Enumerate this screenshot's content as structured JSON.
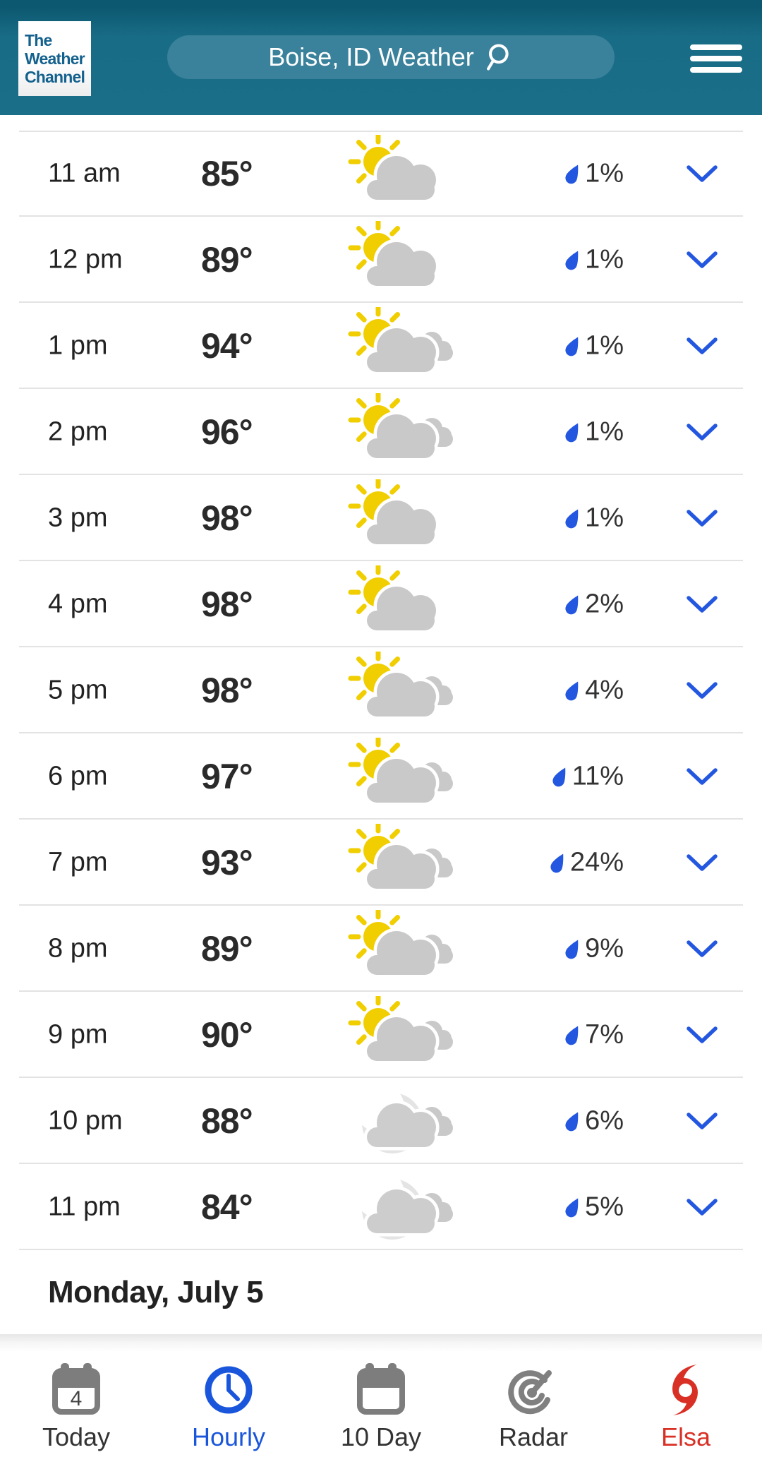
{
  "header": {
    "logo_lines": [
      "The",
      "Weather",
      "Channel"
    ],
    "search_value": "Boise, ID Weather",
    "icons": [
      "search-icon",
      "hamburger-menu-icon"
    ]
  },
  "hourly": {
    "rows": [
      {
        "time": "11 am",
        "temp": "85°",
        "icon": "partly-sunny",
        "precip": "1%"
      },
      {
        "time": "12 pm",
        "temp": "89°",
        "icon": "partly-sunny",
        "precip": "1%"
      },
      {
        "time": "1 pm",
        "temp": "94°",
        "icon": "partly-sunny-extra-cloud",
        "precip": "1%"
      },
      {
        "time": "2 pm",
        "temp": "96°",
        "icon": "partly-sunny-extra-cloud",
        "precip": "1%"
      },
      {
        "time": "3 pm",
        "temp": "98°",
        "icon": "partly-sunny",
        "precip": "1%"
      },
      {
        "time": "4 pm",
        "temp": "98°",
        "icon": "partly-sunny",
        "precip": "2%"
      },
      {
        "time": "5 pm",
        "temp": "98°",
        "icon": "partly-sunny-extra-cloud",
        "precip": "4%"
      },
      {
        "time": "6 pm",
        "temp": "97°",
        "icon": "partly-sunny-extra-cloud",
        "precip": "11%"
      },
      {
        "time": "7 pm",
        "temp": "93°",
        "icon": "partly-sunny-extra-cloud",
        "precip": "24%"
      },
      {
        "time": "8 pm",
        "temp": "89°",
        "icon": "partly-sunny-extra-cloud",
        "precip": "9%"
      },
      {
        "time": "9 pm",
        "temp": "90°",
        "icon": "partly-sunny-extra-cloud",
        "precip": "7%"
      },
      {
        "time": "10 pm",
        "temp": "88°",
        "icon": "cloudy-night",
        "precip": "6%"
      },
      {
        "time": "11 pm",
        "temp": "84°",
        "icon": "cloudy-night",
        "precip": "5%"
      }
    ],
    "next_day_header": "Monday, July 5"
  },
  "bottom_nav": {
    "items": [
      {
        "label": "Today",
        "icon": "calendar-today-icon",
        "badge": "4",
        "active": false
      },
      {
        "label": "Hourly",
        "icon": "clock-icon",
        "active": true
      },
      {
        "label": "10 Day",
        "icon": "calendar-icon",
        "active": false
      },
      {
        "label": "Radar",
        "icon": "radar-icon",
        "active": false
      },
      {
        "label": "Elsa",
        "icon": "hurricane-icon",
        "active": false
      }
    ]
  },
  "colors": {
    "header_bg": "#1A6E88",
    "header_top_strip": "#0C5870",
    "search_pill_bg": "#3A819B",
    "logo_blue": "#14618E",
    "link_blue": "#2457E0",
    "active_tab_blue": "#1A56DB",
    "elsa_red": "#D93025",
    "divider": "#E3E3E3",
    "sun_yellow": "#F0CE00",
    "cloud_gray": "#C9C9C9",
    "moon_gray": "#E4E4E4",
    "nav_icon_gray": "#7D7D7D"
  }
}
